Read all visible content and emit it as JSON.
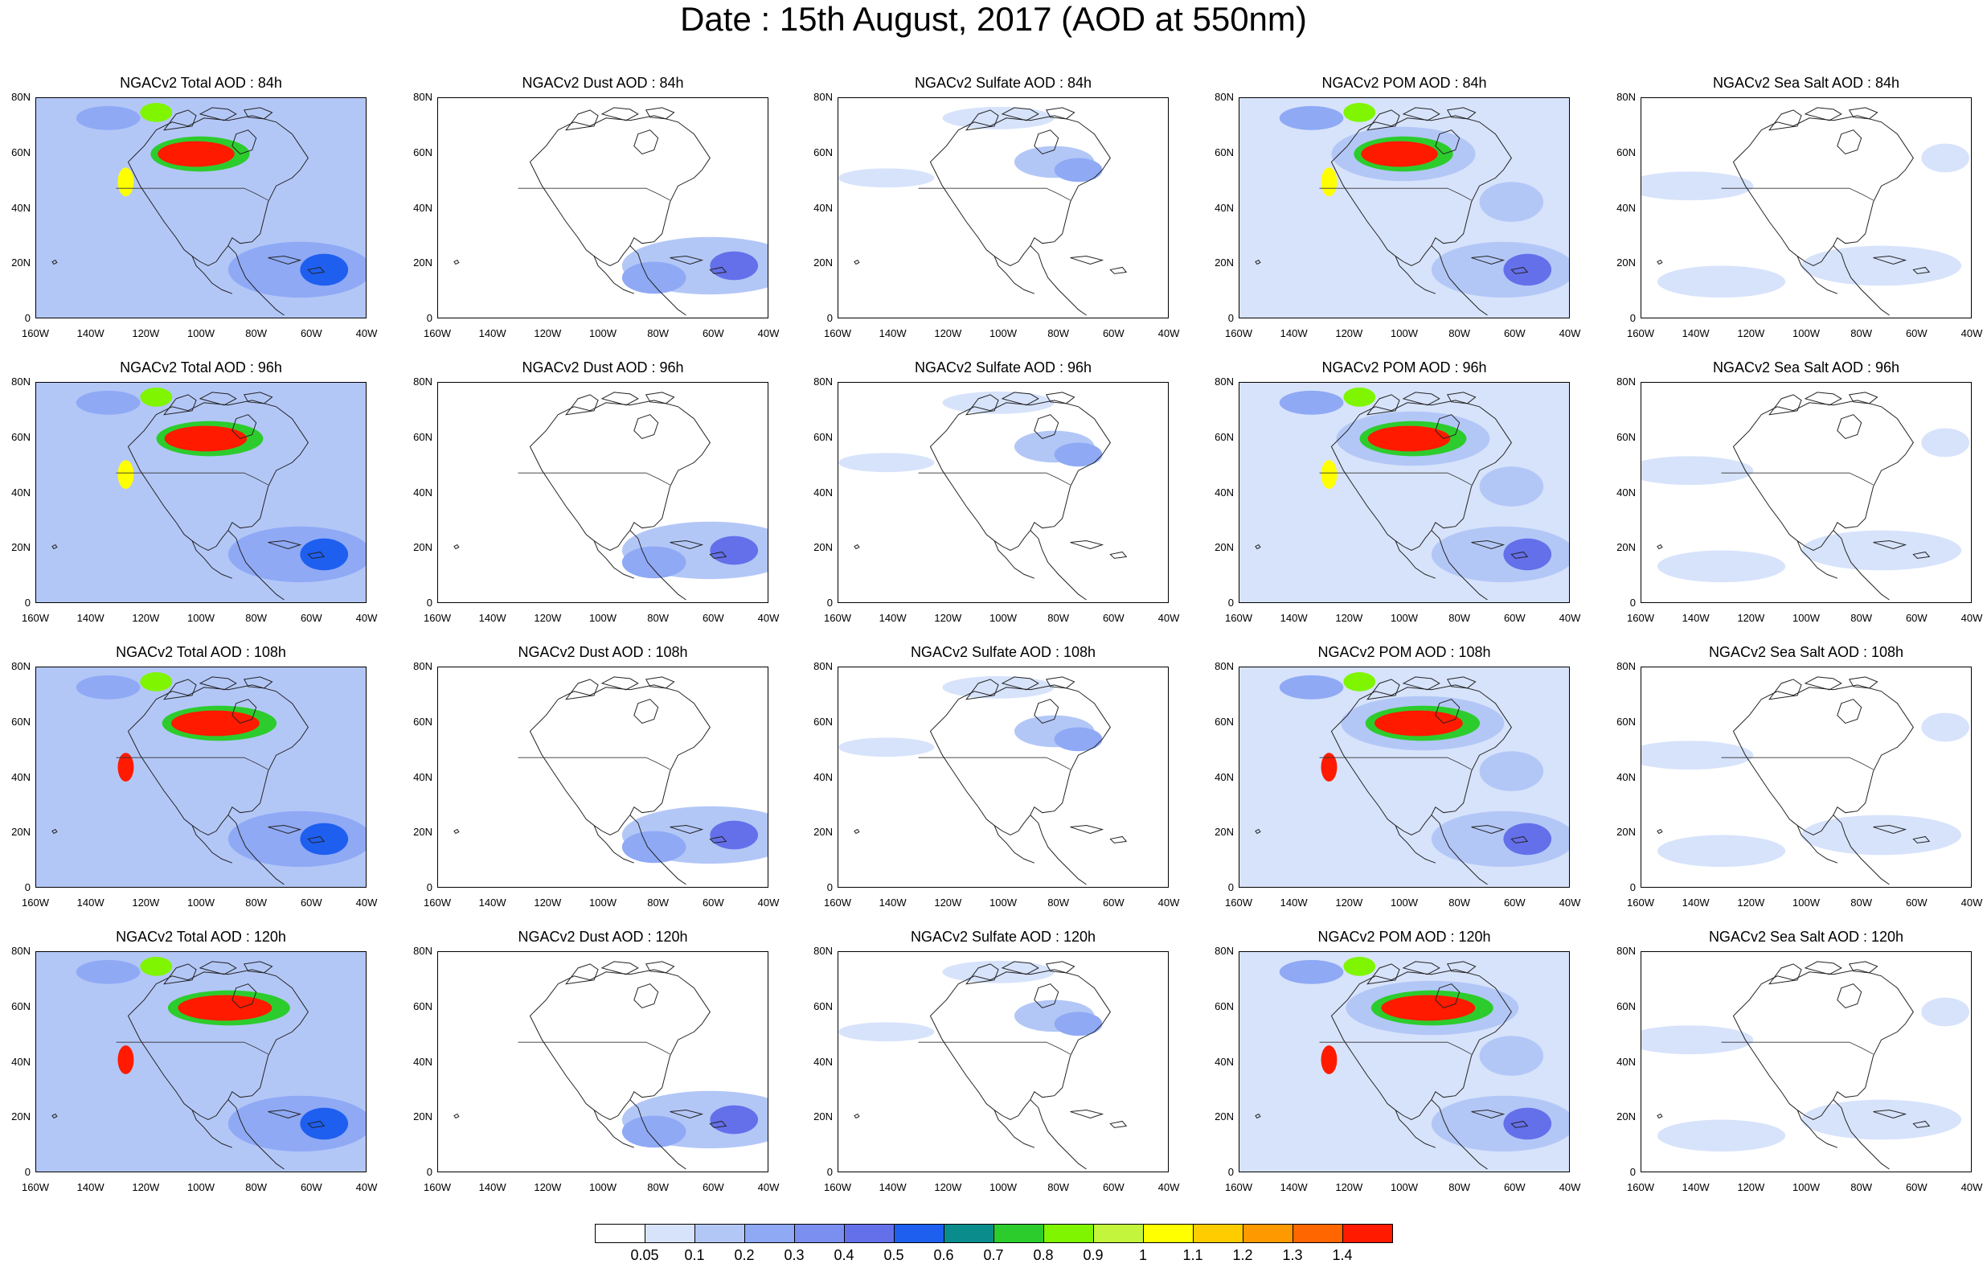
{
  "title": "Date : 15th August, 2017 (AOD at 550nm)",
  "rows": [
    "84h",
    "96h",
    "108h",
    "120h"
  ],
  "panel_titles": [
    [
      "NGACv2 Total AOD : 84h",
      "NGACv2 Dust AOD : 84h",
      "NGACv2 Sulfate AOD : 84h",
      "NGACv2 POM AOD : 84h",
      "NGACv2 Sea Salt AOD : 84h"
    ],
    [
      "NGACv2 Total AOD : 96h",
      "NGACv2 Dust AOD : 96h",
      "NGACv2 Sulfate AOD : 96h",
      "NGACv2 POM AOD : 96h",
      "NGACv2 Sea Salt AOD : 96h"
    ],
    [
      "NGACv2 Total AOD : 108h",
      "NGACv2 Dust AOD : 108h",
      "NGACv2 Sulfate AOD : 108h",
      "NGACv2 POM AOD : 108h",
      "NGACv2 Sea Salt AOD : 108h"
    ],
    [
      "NGACv2 Total AOD : 120h",
      "NGACv2 Dust AOD : 120h",
      "NGACv2 Sulfate AOD : 120h",
      "NGACv2 POM AOD : 120h",
      "NGACv2 Sea Salt  AOD : 120h"
    ]
  ],
  "y_ticks": [
    "80N",
    "60N",
    "40N",
    "20N",
    "0"
  ],
  "x_ticks": [
    "160W",
    "140W",
    "120W",
    "100W",
    "80W",
    "60W",
    "40W"
  ],
  "colorbar": {
    "colors": [
      "#ffffff",
      "#d7e3fb",
      "#b3c7f7",
      "#8fa9f5",
      "#7b8ff0",
      "#6470ea",
      "#1e5ff0",
      "#0a8c8c",
      "#2dcc2d",
      "#7ff500",
      "#c3f53c",
      "#ffff00",
      "#ffcc00",
      "#ff9900",
      "#ff6600",
      "#ff1a00"
    ],
    "labels": [
      "0.05",
      "0.1",
      "0.2",
      "0.3",
      "0.4",
      "0.5",
      "0.6",
      "0.7",
      "0.8",
      "0.9",
      "1",
      "1.1",
      "1.2",
      "1.3",
      "1.4"
    ]
  }
}
